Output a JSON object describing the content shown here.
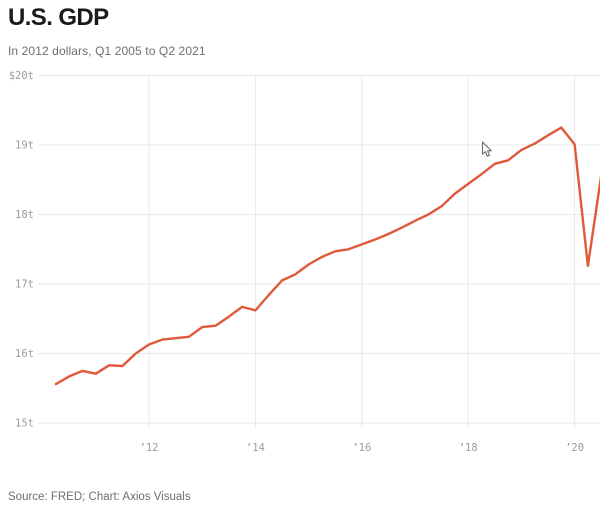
{
  "header": {
    "title": "U.S. GDP",
    "subtitle": "In 2012 dollars, Q1 2005 to Q2 2021"
  },
  "footer": {
    "source": "Source: FRED; Chart: Axios Visuals"
  },
  "colors": {
    "line": "#e05a3a",
    "grid": "#eaeaea",
    "axis_text": "#9c9c9c",
    "title_text": "#1b1b1b",
    "muted_text": "#6f6f6f"
  },
  "chart_data": {
    "type": "line",
    "title": "U.S. GDP",
    "subtitle": "In 2012 dollars, Q1 2005 to Q2 2021",
    "unit": "trillions of 2012 dollars",
    "legend": false,
    "grid": true,
    "ylim": [
      15,
      20
    ],
    "x_start": 2010.25,
    "x_step": 0.25,
    "quarters": [
      "2010 Q2",
      "2010 Q3",
      "2010 Q4",
      "2011 Q1",
      "2011 Q2",
      "2011 Q3",
      "2011 Q4",
      "2012 Q1",
      "2012 Q2",
      "2012 Q3",
      "2012 Q4",
      "2013 Q1",
      "2013 Q2",
      "2013 Q3",
      "2013 Q4",
      "2014 Q1",
      "2014 Q2",
      "2014 Q3",
      "2014 Q4",
      "2015 Q1",
      "2015 Q2",
      "2015 Q3",
      "2015 Q4",
      "2016 Q1",
      "2016 Q2",
      "2016 Q3",
      "2016 Q4",
      "2017 Q1",
      "2017 Q2",
      "2017 Q3",
      "2017 Q4",
      "2018 Q1",
      "2018 Q2",
      "2018 Q3",
      "2018 Q4",
      "2019 Q1",
      "2019 Q2",
      "2019 Q3",
      "2019 Q4",
      "2020 Q1",
      "2020 Q2",
      "2020 Q3"
    ],
    "values": [
      15.56,
      15.67,
      15.75,
      15.71,
      15.83,
      15.82,
      16.0,
      16.13,
      16.2,
      16.22,
      16.24,
      16.38,
      16.4,
      16.53,
      16.67,
      16.62,
      16.84,
      17.05,
      17.14,
      17.28,
      17.39,
      17.47,
      17.5,
      17.57,
      17.64,
      17.72,
      17.81,
      17.91,
      18.0,
      18.12,
      18.3,
      18.44,
      18.58,
      18.73,
      18.78,
      18.93,
      19.02,
      19.14,
      19.25,
      19.01,
      17.26,
      18.56
    ],
    "y_ticks": [
      {
        "label": "$20t",
        "value": 20
      },
      {
        "label": "19t",
        "value": 19
      },
      {
        "label": "18t",
        "value": 18
      },
      {
        "label": "17t",
        "value": 17
      },
      {
        "label": "16t",
        "value": 16
      },
      {
        "label": "15t",
        "value": 15
      }
    ],
    "x_ticks": [
      {
        "label": "’12",
        "value": 2012
      },
      {
        "label": "’14",
        "value": 2014
      },
      {
        "label": "’16",
        "value": 2016
      },
      {
        "label": "’18",
        "value": 2018
      },
      {
        "label": "’20",
        "value": 2020
      }
    ]
  }
}
